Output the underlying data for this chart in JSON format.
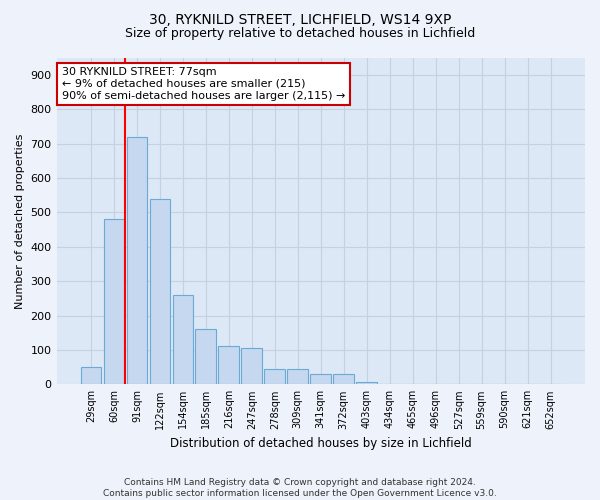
{
  "title": "30, RYKNILD STREET, LICHFIELD, WS14 9XP",
  "subtitle": "Size of property relative to detached houses in Lichfield",
  "xlabel": "Distribution of detached houses by size in Lichfield",
  "ylabel": "Number of detached properties",
  "footer": "Contains HM Land Registry data © Crown copyright and database right 2024.\nContains public sector information licensed under the Open Government Licence v3.0.",
  "bar_labels": [
    "29sqm",
    "60sqm",
    "91sqm",
    "122sqm",
    "154sqm",
    "185sqm",
    "216sqm",
    "247sqm",
    "278sqm",
    "309sqm",
    "341sqm",
    "372sqm",
    "403sqm",
    "434sqm",
    "465sqm",
    "496sqm",
    "527sqm",
    "559sqm",
    "590sqm",
    "621sqm",
    "652sqm"
  ],
  "bar_values": [
    50,
    480,
    720,
    540,
    260,
    162,
    110,
    106,
    45,
    45,
    30,
    30,
    8,
    0,
    0,
    0,
    0,
    0,
    0,
    0,
    0
  ],
  "bar_color": "#c5d8ef",
  "bar_edge_color": "#6aaad4",
  "ylim": [
    0,
    950
  ],
  "yticks": [
    0,
    100,
    200,
    300,
    400,
    500,
    600,
    700,
    800,
    900
  ],
  "red_line_x": 1.5,
  "annotation_text": "30 RYKNILD STREET: 77sqm\n← 9% of detached houses are smaller (215)\n90% of semi-detached houses are larger (2,115) →",
  "annotation_box_color": "#ffffff",
  "annotation_box_edge_color": "#cc0000",
  "background_color": "#eef2fa",
  "plot_bg_color": "#dce8f5",
  "grid_color": "#c5d0e0",
  "title_fontsize": 10,
  "subtitle_fontsize": 9
}
